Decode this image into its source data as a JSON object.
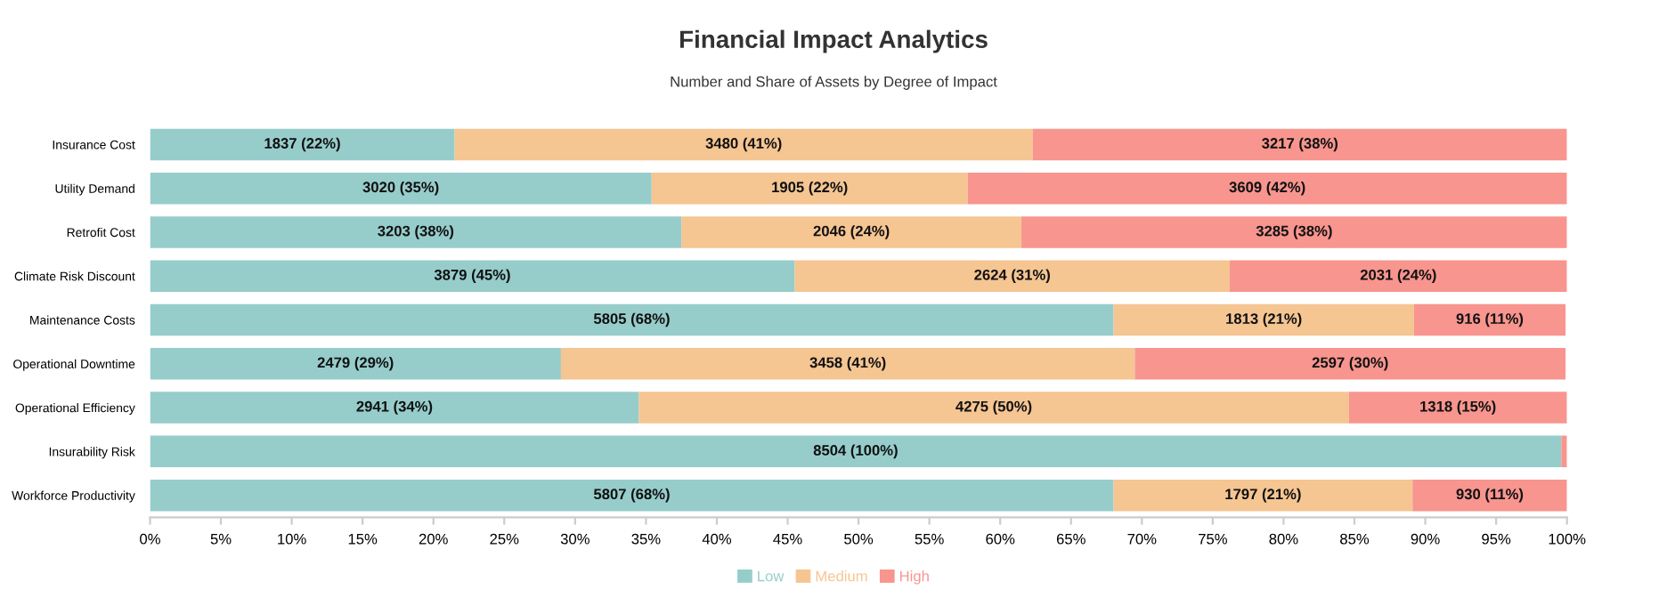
{
  "chart_data": {
    "type": "bar",
    "orientation": "horizontal",
    "stacked": true,
    "title": "Financial Impact Analytics",
    "subtitle": "Number and Share of Assets by Degree of Impact",
    "categories": [
      "Insurance Cost",
      "Utility Demand",
      "Retrofit Cost",
      "Climate Risk Discount",
      "Maintenance Costs",
      "Operational Downtime",
      "Operational Efficiency",
      "Insurability Risk",
      "Workforce Productivity"
    ],
    "series": [
      {
        "name": "Low",
        "color": "#96cdcb",
        "values": [
          21.5,
          35.4,
          37.5,
          45.5,
          68.0,
          29.0,
          34.5,
          99.6,
          68.0
        ],
        "value_labels": [
          "1837 (22%)",
          "3020 (35%)",
          "3203 (38%)",
          "3879 (45%)",
          "5805 (68%)",
          "2479 (29%)",
          "2941 (34%)",
          "8504 (100%)",
          "5807 (68%)"
        ]
      },
      {
        "name": "Medium",
        "color": "#f5c592",
        "values": [
          40.8,
          22.3,
          24.0,
          30.7,
          21.2,
          40.5,
          50.1,
          0,
          21.1
        ],
        "value_labels": [
          "3480 (41%)",
          "1905 (22%)",
          "2046 (24%)",
          "2624 (31%)",
          "1813 (21%)",
          "3458 (41%)",
          "4275 (50%)",
          null,
          "1797 (21%)"
        ]
      },
      {
        "name": "High",
        "color": "#f7958e",
        "values": [
          37.7,
          42.3,
          38.5,
          23.8,
          10.7,
          30.4,
          15.4,
          0.4,
          10.9
        ],
        "value_labels": [
          "3217 (38%)",
          "3609 (42%)",
          "3285 (38%)",
          "2031 (24%)",
          "916 (11%)",
          "2597 (30%)",
          "1318 (15%)",
          null,
          "930 (11%)"
        ]
      }
    ],
    "xlim": [
      0,
      100
    ],
    "xticks": [
      {
        "value": 0,
        "label": "0%"
      },
      {
        "value": 5,
        "label": "5%"
      },
      {
        "value": 10,
        "label": "10%"
      },
      {
        "value": 15,
        "label": "15%"
      },
      {
        "value": 20,
        "label": "20%"
      },
      {
        "value": 25,
        "label": "25%"
      },
      {
        "value": 30,
        "label": "30%"
      },
      {
        "value": 35,
        "label": "35%"
      },
      {
        "value": 40,
        "label": "40%"
      },
      {
        "value": 45,
        "label": "45%"
      },
      {
        "value": 50,
        "label": "50%"
      },
      {
        "value": 55,
        "label": "55%"
      },
      {
        "value": 60,
        "label": "60%"
      },
      {
        "value": 65,
        "label": "65%"
      },
      {
        "value": 70,
        "label": "70%"
      },
      {
        "value": 75,
        "label": "75%"
      },
      {
        "value": 80,
        "label": "80%"
      },
      {
        "value": 85,
        "label": "85%"
      },
      {
        "value": 90,
        "label": "90%"
      },
      {
        "value": 95,
        "label": "95%"
      },
      {
        "value": 100,
        "label": "100%"
      }
    ],
    "legend": "bottom"
  }
}
